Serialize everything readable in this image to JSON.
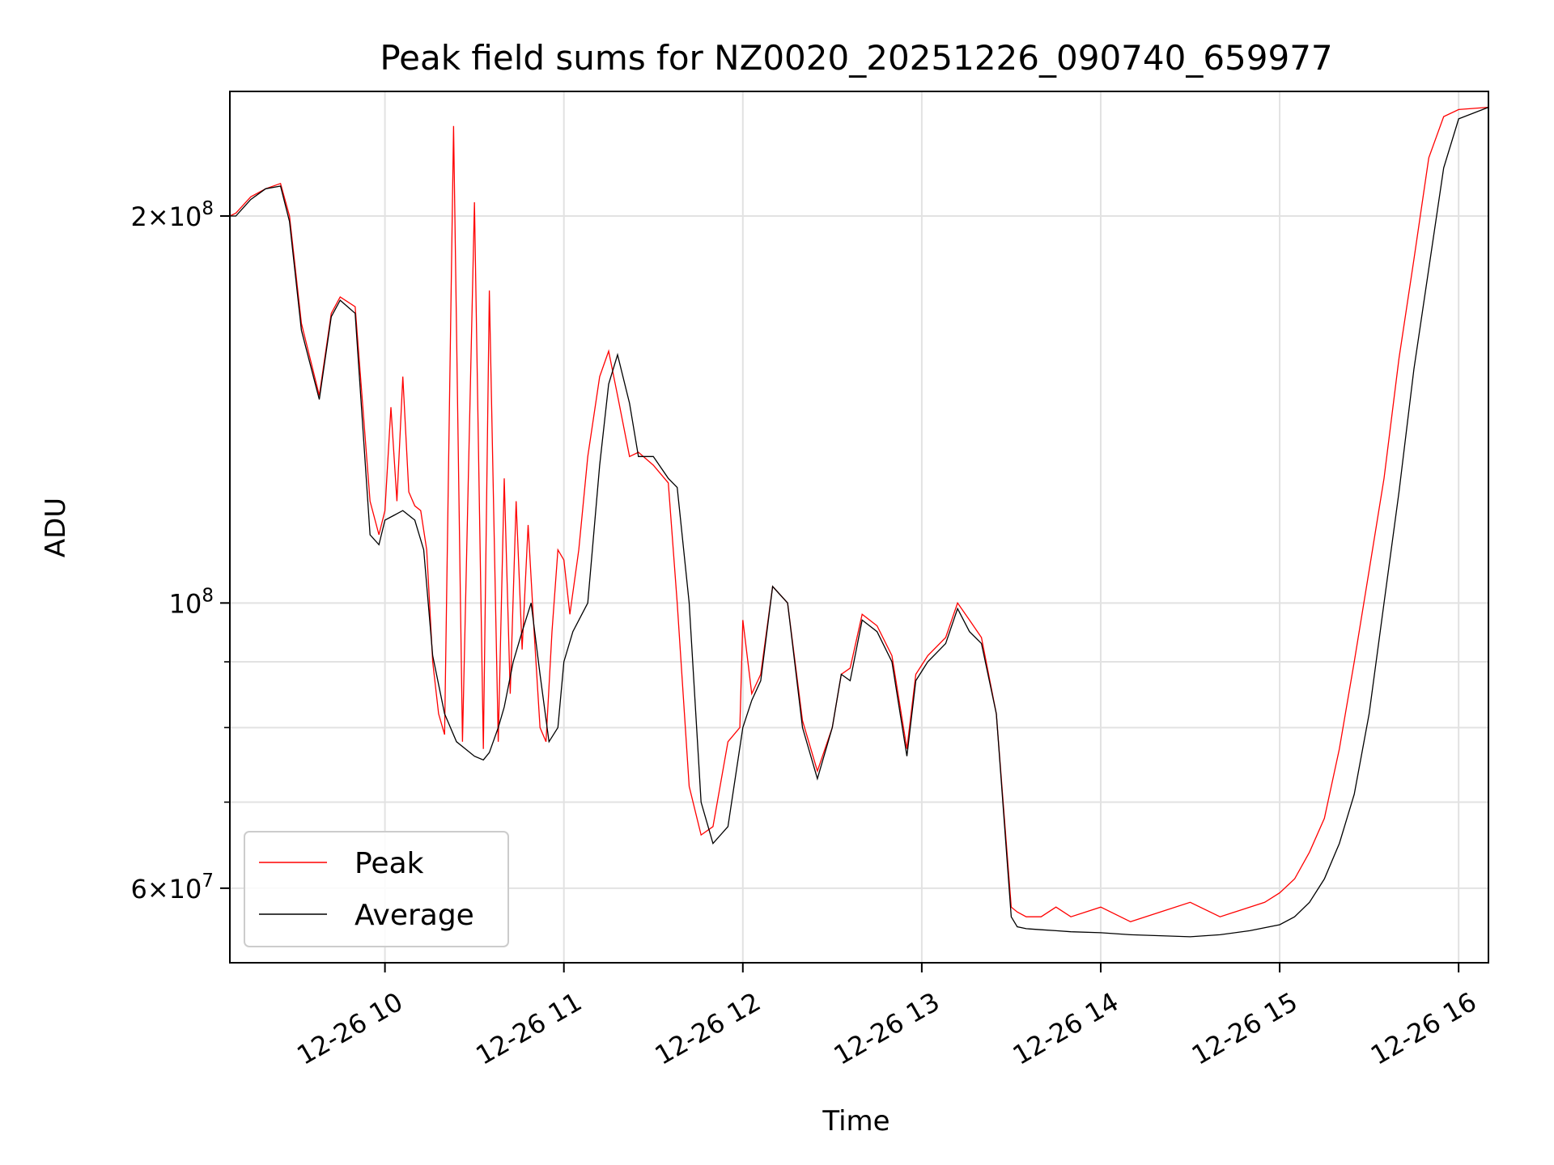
{
  "chart_data": {
    "type": "line",
    "title": "Peak field sums for NZ0020_20251226_090740_659977",
    "xlabel": "Time",
    "ylabel": "ADU",
    "yscale": "log",
    "ylim": [
      52500000,
      250000000
    ],
    "xlim": [
      "12-26 09:08",
      "12-26 16:10"
    ],
    "grid": true,
    "legend_position": "lower-left",
    "x_tick_labels": [
      "12-26 10",
      "12-26 11",
      "12-26 12",
      "12-26 13",
      "12-26 14",
      "12-26 15",
      "12-26 16"
    ],
    "y_major_ticks": [
      {
        "value": 60000000,
        "mantissa": "6",
        "base": "10",
        "exp": "7"
      },
      {
        "value": 100000000,
        "mantissa": "",
        "base": "10",
        "exp": "8"
      },
      {
        "value": 200000000,
        "mantissa": "2",
        "base": "10",
        "exp": "8"
      }
    ],
    "y_minor_gridlines": [
      70000000,
      80000000,
      90000000
    ],
    "colors": {
      "peak": "#ff0000",
      "average": "#000000"
    },
    "series": [
      {
        "name": "Peak",
        "color": "#ff0000",
        "x": [
          "09:08",
          "09:10",
          "09:15",
          "09:20",
          "09:25",
          "09:28",
          "09:32",
          "09:38",
          "09:42",
          "09:45",
          "09:50",
          "09:55",
          "09:58",
          "10:00",
          "10:02",
          "10:04",
          "10:06",
          "10:08",
          "10:10",
          "10:12",
          "10:14",
          "10:16",
          "10:18",
          "10:20",
          "10:23",
          "10:26",
          "10:30",
          "10:33",
          "10:35",
          "10:38",
          "10:40",
          "10:42",
          "10:44",
          "10:46",
          "10:48",
          "10:50",
          "10:52",
          "10:54",
          "10:56",
          "10:58",
          "11:00",
          "11:02",
          "11:05",
          "11:08",
          "11:12",
          "11:15",
          "11:18",
          "11:22",
          "11:25",
          "11:30",
          "11:35",
          "11:38",
          "11:42",
          "11:46",
          "11:50",
          "11:55",
          "11:59",
          "12:00",
          "12:03",
          "12:06",
          "12:10",
          "12:15",
          "12:20",
          "12:25",
          "12:30",
          "12:33",
          "12:36",
          "12:40",
          "12:45",
          "12:50",
          "12:55",
          "12:58",
          "13:02",
          "13:08",
          "13:12",
          "13:16",
          "13:20",
          "13:25",
          "13:30",
          "13:32",
          "13:35",
          "13:40",
          "13:45",
          "13:50",
          "13:55",
          "14:00",
          "14:10",
          "14:20",
          "14:30",
          "14:40",
          "14:50",
          "14:55",
          "15:00",
          "15:05",
          "15:10",
          "15:15",
          "15:20",
          "15:25",
          "15:30",
          "15:35",
          "15:40",
          "15:45",
          "15:50",
          "15:55",
          "16:00",
          "16:10"
        ],
        "y": [
          200000000,
          201000000,
          207000000,
          210000000,
          212000000,
          200000000,
          165000000,
          145000000,
          168000000,
          173000000,
          170000000,
          120000000,
          113000000,
          118000000,
          142000000,
          120000000,
          150000000,
          122000000,
          119000000,
          118000000,
          110000000,
          90000000,
          82000000,
          79000000,
          235000000,
          78000000,
          205000000,
          77000000,
          175000000,
          78000000,
          125000000,
          85000000,
          120000000,
          92000000,
          115000000,
          95000000,
          80000000,
          78000000,
          95000000,
          110000000,
          108000000,
          98000000,
          110000000,
          130000000,
          150000000,
          157000000,
          145000000,
          130000000,
          131000000,
          128000000,
          124000000,
          100000000,
          72000000,
          66000000,
          67000000,
          78000000,
          80000000,
          97000000,
          85000000,
          88000000,
          103000000,
          100000000,
          81000000,
          74000000,
          80000000,
          88000000,
          89000000,
          98000000,
          96000000,
          91000000,
          77000000,
          88000000,
          91000000,
          94000000,
          100000000,
          97000000,
          94000000,
          82000000,
          58000000,
          57500000,
          57000000,
          57000000,
          58000000,
          57000000,
          57500000,
          58000000,
          56500000,
          57500000,
          58500000,
          57000000,
          58000000,
          58500000,
          59500000,
          61000000,
          64000000,
          68000000,
          77000000,
          90000000,
          106000000,
          125000000,
          155000000,
          185000000,
          222000000,
          239000000,
          242000000,
          243000000
        ]
      },
      {
        "name": "Average",
        "color": "#000000",
        "x": [
          "09:08",
          "09:10",
          "09:15",
          "09:20",
          "09:25",
          "09:28",
          "09:32",
          "09:38",
          "09:42",
          "09:45",
          "09:50",
          "09:55",
          "09:58",
          "10:00",
          "10:03",
          "10:06",
          "10:08",
          "10:10",
          "10:13",
          "10:16",
          "10:20",
          "10:24",
          "10:27",
          "10:30",
          "10:33",
          "10:35",
          "10:38",
          "10:40",
          "10:43",
          "10:46",
          "10:49",
          "10:52",
          "10:55",
          "10:58",
          "11:00",
          "11:03",
          "11:08",
          "11:12",
          "11:15",
          "11:18",
          "11:22",
          "11:25",
          "11:30",
          "11:35",
          "11:38",
          "11:42",
          "11:46",
          "11:50",
          "11:55",
          "12:00",
          "12:03",
          "12:06",
          "12:10",
          "12:15",
          "12:20",
          "12:25",
          "12:30",
          "12:33",
          "12:36",
          "12:40",
          "12:45",
          "12:50",
          "12:55",
          "12:58",
          "13:02",
          "13:08",
          "13:12",
          "13:16",
          "13:20",
          "13:25",
          "13:30",
          "13:32",
          "13:35",
          "13:40",
          "13:45",
          "13:50",
          "14:00",
          "14:10",
          "14:20",
          "14:30",
          "14:40",
          "14:50",
          "15:00",
          "15:05",
          "15:10",
          "15:15",
          "15:20",
          "15:25",
          "15:30",
          "15:35",
          "15:40",
          "15:45",
          "15:50",
          "15:55",
          "16:00",
          "16:10"
        ],
        "y": [
          200000000,
          200000000,
          206000000,
          210000000,
          211000000,
          198000000,
          163000000,
          144000000,
          167000000,
          172000000,
          168000000,
          113000000,
          111000000,
          116000000,
          117000000,
          118000000,
          117000000,
          116000000,
          110000000,
          91000000,
          82000000,
          78000000,
          77000000,
          76000000,
          75500000,
          76500000,
          80000000,
          83000000,
          90000000,
          95000000,
          100000000,
          88000000,
          78000000,
          80000000,
          90000000,
          95000000,
          100000000,
          128000000,
          148000000,
          156000000,
          143000000,
          130000000,
          130000000,
          125000000,
          123000000,
          100000000,
          70000000,
          65000000,
          67000000,
          80000000,
          84000000,
          87000000,
          103000000,
          100000000,
          80000000,
          73000000,
          80000000,
          88000000,
          87000000,
          97000000,
          95000000,
          90000000,
          76000000,
          87000000,
          90000000,
          93000000,
          99000000,
          95000000,
          93000000,
          82000000,
          57000000,
          56000000,
          55800000,
          55700000,
          55600000,
          55500000,
          55400000,
          55200000,
          55100000,
          55000000,
          55200000,
          55600000,
          56200000,
          57000000,
          58500000,
          61000000,
          65000000,
          71000000,
          82000000,
          100000000,
          122000000,
          152000000,
          182000000,
          218000000,
          238000000,
          243000000
        ]
      }
    ]
  }
}
